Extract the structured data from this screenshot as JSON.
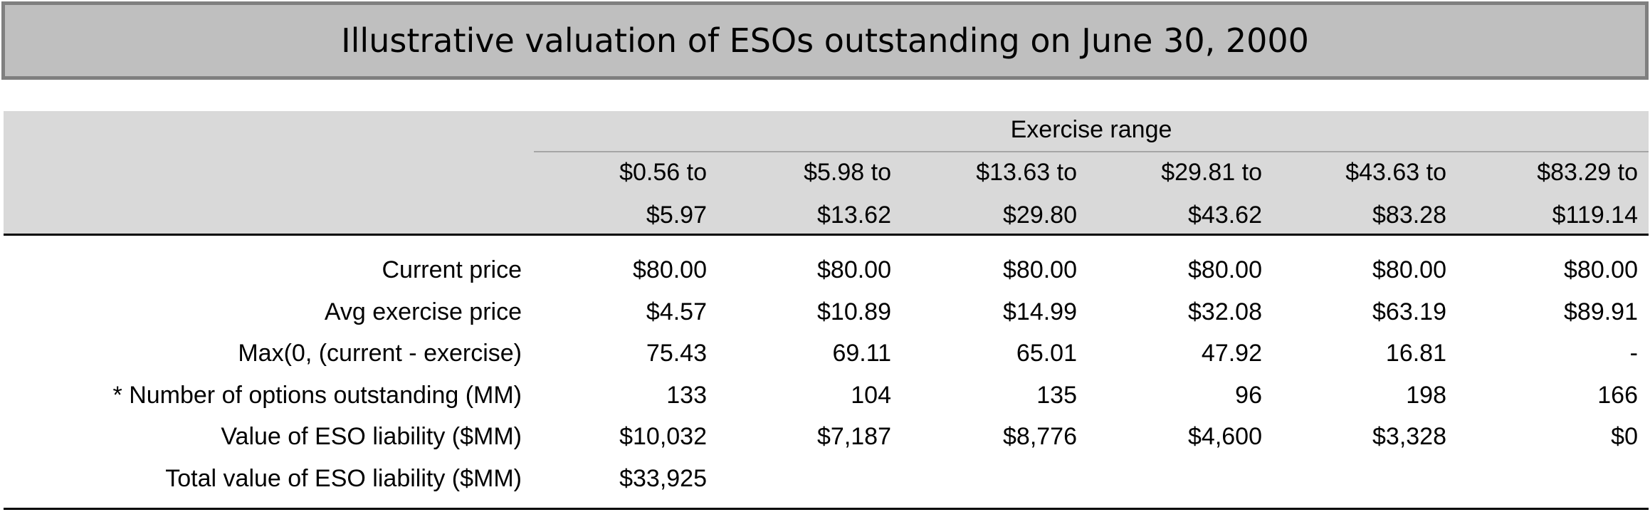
{
  "title": "Illustrative valuation of ESOs outstanding on June 30, 2000",
  "table": {
    "group_label": "Exercise range",
    "columns": [
      {
        "line1": "$0.56 to",
        "line2": "$5.97"
      },
      {
        "line1": "$5.98 to",
        "line2": "$13.62"
      },
      {
        "line1": "$13.63 to",
        "line2": "$29.80"
      },
      {
        "line1": "$29.81 to",
        "line2": "$43.62"
      },
      {
        "line1": "$43.63 to",
        "line2": "$83.28"
      },
      {
        "line1": "$83.29 to",
        "line2": "$119.14"
      }
    ],
    "rows": [
      {
        "label": "Current price",
        "values": [
          "$80.00",
          "$80.00",
          "$80.00",
          "$80.00",
          "$80.00",
          "$80.00"
        ]
      },
      {
        "label": "Avg exercise price",
        "values": [
          "$4.57",
          "$10.89",
          "$14.99",
          "$32.08",
          "$63.19",
          "$89.91"
        ]
      },
      {
        "label": "Max(0, (current - exercise)",
        "values": [
          "75.43",
          "69.11",
          "65.01",
          "47.92",
          "16.81",
          "-"
        ]
      },
      {
        "label": "* Number of options outstanding (MM)",
        "values": [
          "133",
          "104",
          "135",
          "96",
          "198",
          "166"
        ]
      },
      {
        "label": "Value of ESO liability ($MM)",
        "values": [
          "$10,032",
          "$7,187",
          "$8,776",
          "$4,600",
          "$3,328",
          "$0"
        ]
      },
      {
        "label": "Total value of ESO liability ($MM)",
        "values": [
          "$33,925",
          "",
          "",
          "",
          "",
          ""
        ]
      }
    ]
  }
}
